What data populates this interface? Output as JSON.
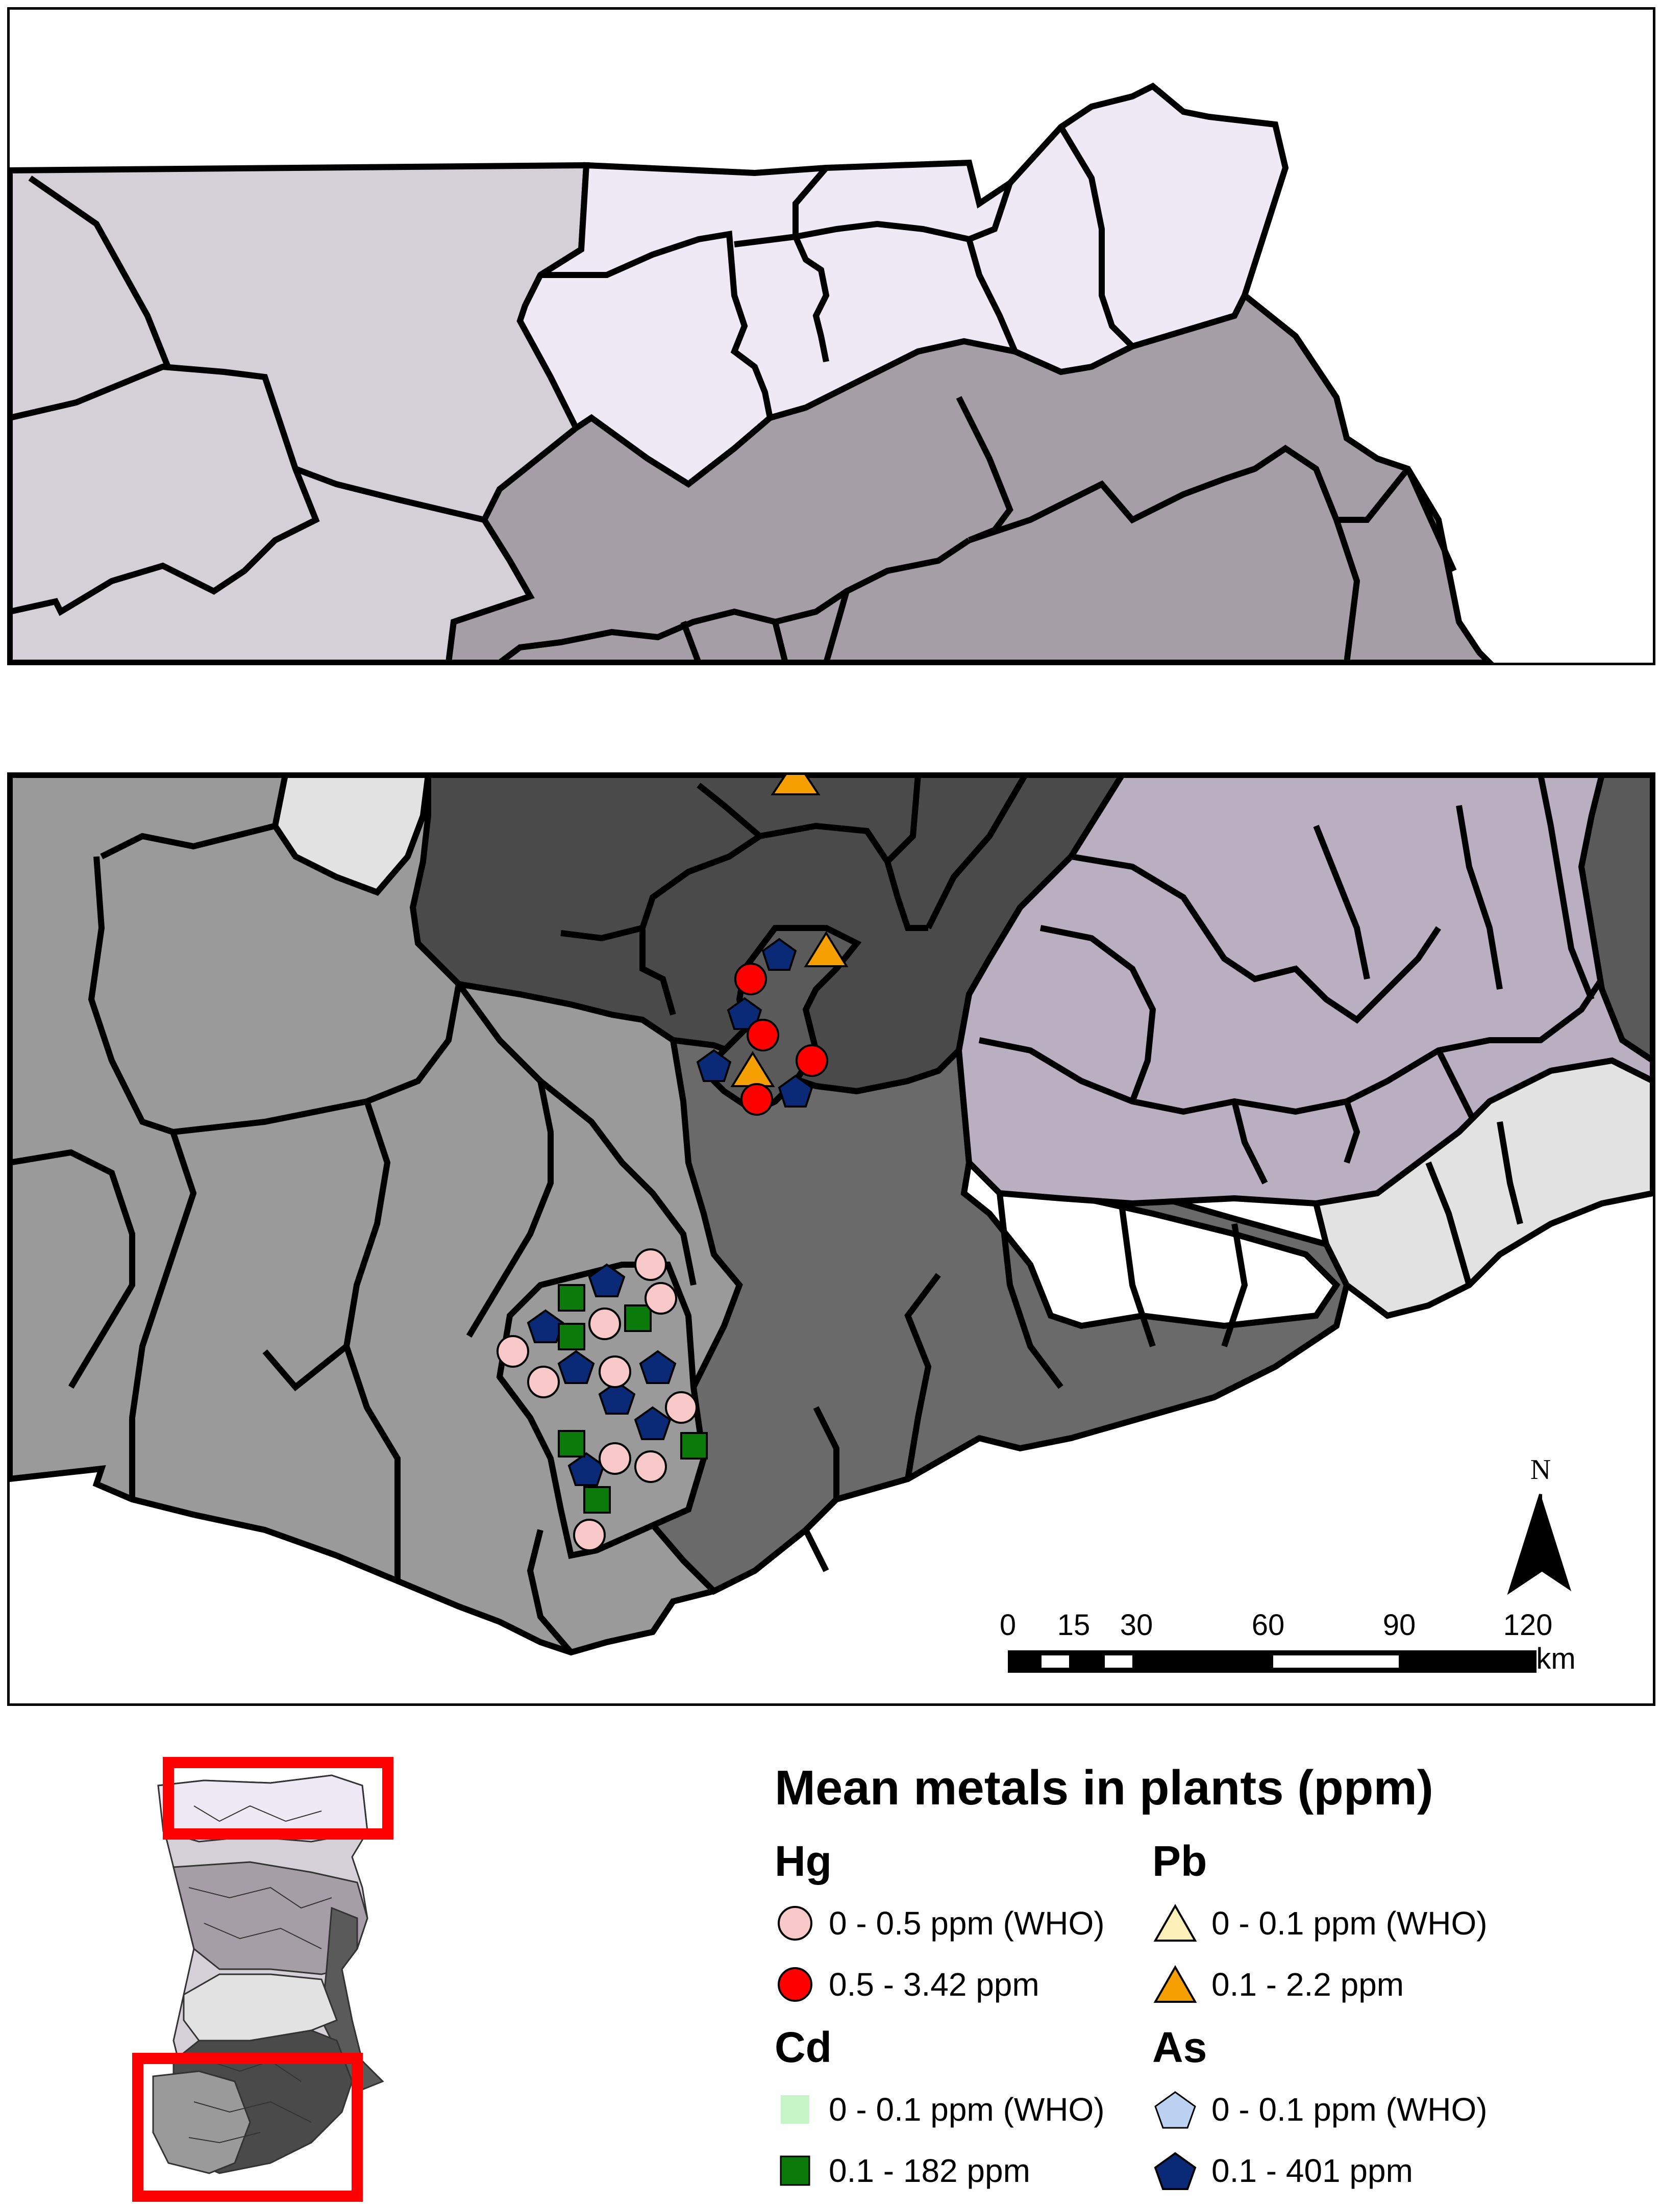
{
  "legend": {
    "title": "Mean metals in plants (ppm)",
    "groups": [
      {
        "metal": "Hg",
        "items": [
          {
            "label": "0 - 0.5 ppm (WHO)",
            "symbol": "circle",
            "fill": "#f9c8c8"
          },
          {
            "label": "0.5 - 3.42 ppm",
            "symbol": "circle",
            "fill": "#ff0000"
          }
        ]
      },
      {
        "metal": "Pb",
        "items": [
          {
            "label": "0 - 0.1 ppm (WHO)",
            "symbol": "triangle",
            "fill": "#fdf0b8"
          },
          {
            "label": "0.1 - 2.2 ppm",
            "symbol": "triangle",
            "fill": "#f5a000"
          }
        ]
      },
      {
        "metal": "Cd",
        "items": [
          {
            "label": "0 - 0.1 ppm (WHO)",
            "symbol": "square",
            "fill": "#c8f5c8"
          },
          {
            "label": "0.1 - 182 ppm",
            "symbol": "square",
            "fill": "#0a7a0a"
          }
        ]
      },
      {
        "metal": "As",
        "items": [
          {
            "label": "0 - 0.1 ppm (WHO)",
            "symbol": "pentagon",
            "fill": "#bcd2f2"
          },
          {
            "label": "0.1 - 401 ppm",
            "symbol": "pentagon",
            "fill": "#0a2a78"
          }
        ]
      }
    ]
  },
  "scale_bar": {
    "ticks": [
      "0",
      "15",
      "30",
      "60",
      "90",
      "120"
    ],
    "unit": "km"
  },
  "north_arrow": {
    "label": "N"
  },
  "colors": {
    "north_light": "#efe9f6",
    "north_mid": "#d5cfd8",
    "north_dark": "#a69ea6",
    "south_light": "#e2e2e2",
    "south_mid": "#9a9a9a",
    "south_dark": "#6a6a6a",
    "south_darkest": "#4a4a4a",
    "south_purple": "#b9afc0",
    "locator_frame": "#ff0000"
  }
}
